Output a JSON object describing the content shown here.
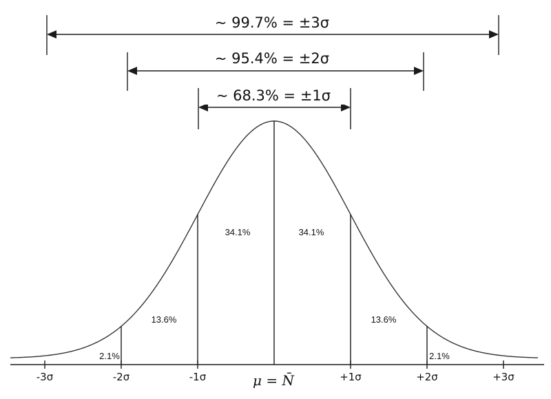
{
  "ranges": [
    {
      "label": "~ 99.7% = ±3σ",
      "sigma": 3
    },
    {
      "label": "~ 95.4% = ±2σ",
      "sigma": 2
    },
    {
      "label": "~ 68.3% = ±1σ",
      "sigma": 1
    }
  ],
  "regions": {
    "center_left": "34.1%",
    "center_right": "34.1%",
    "mid_left": "13.6%",
    "mid_right": "13.6%",
    "tail_left": "2.1%",
    "tail_right": "2.1%"
  },
  "ticks": [
    {
      "sigma": -3,
      "label": "-3σ"
    },
    {
      "sigma": -2,
      "label": "-2σ"
    },
    {
      "sigma": -1,
      "label": "-1σ"
    },
    {
      "sigma": 1,
      "label": "+1σ"
    },
    {
      "sigma": 2,
      "label": "+2σ"
    },
    {
      "sigma": 3,
      "label": "+3σ"
    }
  ],
  "mean_label": "μ = N̄"
}
